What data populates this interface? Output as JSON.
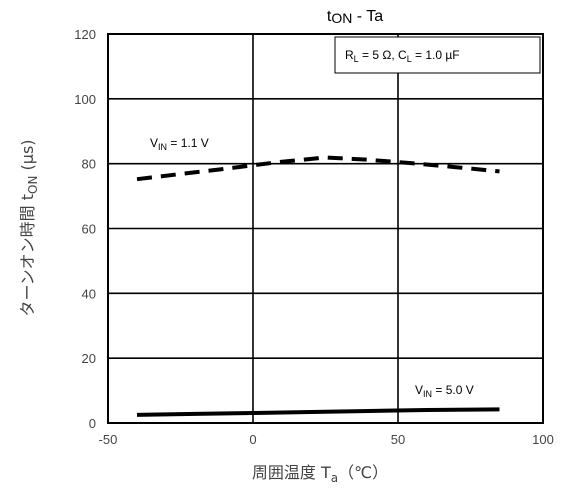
{
  "chart_data": {
    "type": "line",
    "title_main": "t",
    "title_sub": "ON",
    "title_rest": " - Ta",
    "xlabel_main": "周囲温度 T",
    "xlabel_sub": "a",
    "xlabel_rest": "（℃）",
    "ylabel_main": "ターンオン時間 t",
    "ylabel_sub": "ON",
    "ylabel_rest": " (µs)",
    "xlim": [
      -50,
      100
    ],
    "ylim": [
      0,
      120
    ],
    "x_ticks": [
      "-50",
      "0",
      "50",
      "100"
    ],
    "y_ticks": [
      "0",
      "20",
      "40",
      "60",
      "80",
      "100",
      "120"
    ],
    "grid": true,
    "legend_box": {
      "parts": [
        "R",
        "L",
        " = 5 Ω, C",
        "L",
        " = 1.0 µF"
      ]
    },
    "series": [
      {
        "label_parts": [
          "V",
          "IN",
          " = 1.1 V"
        ],
        "style": "dashed",
        "x": [
          -40,
          -25,
          -10,
          0,
          10,
          25,
          40,
          55,
          70,
          85
        ],
        "y": [
          75.2,
          76.8,
          78.4,
          79.5,
          80.6,
          81.9,
          81.2,
          80.1,
          78.9,
          77.6
        ]
      },
      {
        "label_parts": [
          "V",
          "IN",
          " = 5.0 V"
        ],
        "style": "solid",
        "x": [
          -40,
          -20,
          0,
          20,
          40,
          60,
          85
        ],
        "y": [
          2.5,
          2.8,
          3.1,
          3.4,
          3.7,
          4.0,
          4.2
        ]
      }
    ],
    "colors": {
      "line": "#000000",
      "grid": "#000000",
      "text": "#444444"
    }
  }
}
